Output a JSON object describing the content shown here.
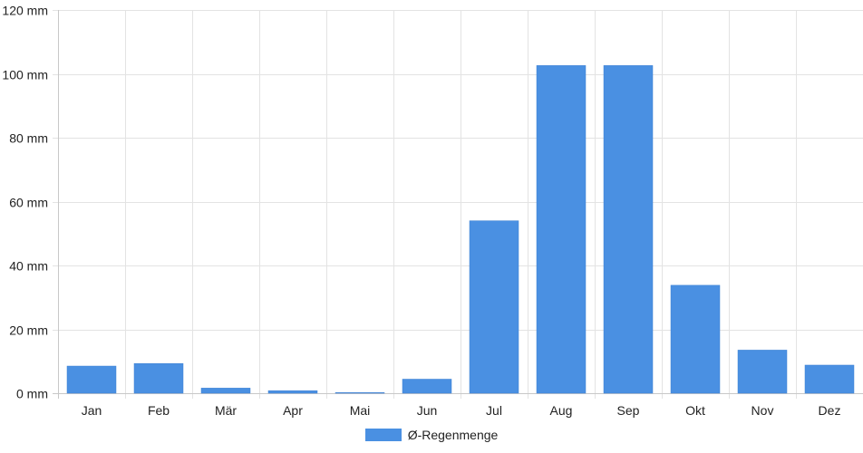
{
  "chart_data": {
    "type": "bar",
    "categories": [
      "Jan",
      "Feb",
      "Mär",
      "Apr",
      "Mai",
      "Jun",
      "Jul",
      "Aug",
      "Sep",
      "Okt",
      "Nov",
      "Dez"
    ],
    "series": [
      {
        "name": "Ø-Regenmenge",
        "color": "#4a90e2",
        "values": [
          8.5,
          9.3,
          1.6,
          0.8,
          0.2,
          4.4,
          54.0,
          102.6,
          102.6,
          33.8,
          13.5,
          8.8
        ]
      }
    ],
    "ylim": [
      0,
      120
    ],
    "yticks": [
      0,
      20,
      40,
      60,
      80,
      100,
      120
    ],
    "ytick_labels": [
      "0 mm",
      "20 mm",
      "40 mm",
      "60 mm",
      "80 mm",
      "100 mm",
      "120 mm"
    ],
    "grid": true,
    "legend_position": "bottom-center"
  }
}
